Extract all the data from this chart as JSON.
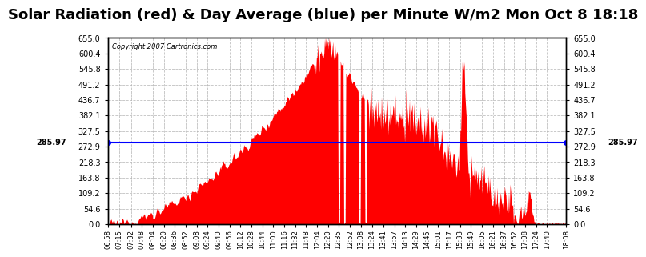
{
  "title": "Solar Radiation (red) & Day Average (blue) per Minute W/m2 Mon Oct 8 18:18",
  "copyright": "Copyright 2007 Cartronics.com",
  "day_average": 285.97,
  "y_max": 655.0,
  "y_min": 0.0,
  "y_ticks": [
    0.0,
    54.6,
    109.2,
    163.8,
    218.3,
    272.9,
    327.5,
    382.1,
    436.7,
    491.2,
    545.8,
    600.4,
    655.0
  ],
  "background_color": "#ffffff",
  "plot_bg_color": "#ffffff",
  "grid_color": "#b0b0b0",
  "fill_color": "#ff0000",
  "avg_line_color": "#0000ff",
  "title_fontsize": 13,
  "x_tick_labels": [
    "06:58",
    "07:15",
    "07:32",
    "07:48",
    "08:04",
    "08:20",
    "08:36",
    "08:52",
    "09:08",
    "09:24",
    "09:40",
    "09:56",
    "10:12",
    "10:28",
    "10:44",
    "11:00",
    "11:16",
    "11:32",
    "11:48",
    "12:04",
    "12:20",
    "12:35",
    "12:52",
    "13:08",
    "13:24",
    "13:41",
    "13:57",
    "14:13",
    "14:29",
    "14:45",
    "15:01",
    "15:17",
    "15:33",
    "15:49",
    "16:05",
    "16:21",
    "16:37",
    "16:52",
    "17:08",
    "17:24",
    "17:40",
    "18:08"
  ]
}
